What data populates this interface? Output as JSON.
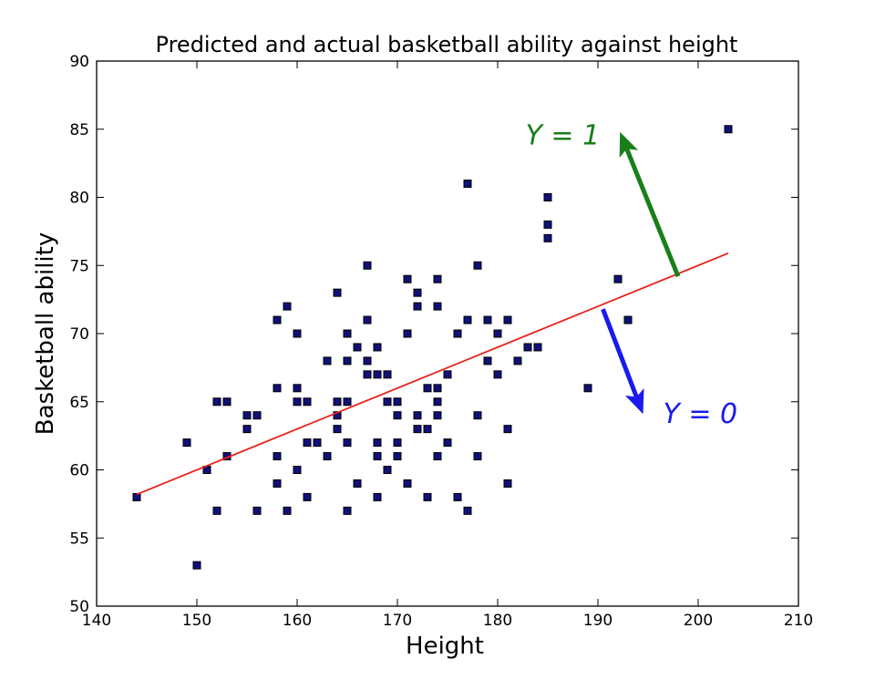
{
  "chart_data": {
    "type": "scatter",
    "title": "Predicted and actual basketball ability against height",
    "xlabel": "Height",
    "ylabel": "Basketball ability",
    "xlim": [
      140,
      210
    ],
    "ylim": [
      50,
      90
    ],
    "xticks": [
      "140",
      "150",
      "160",
      "170",
      "180",
      "190",
      "200",
      "210"
    ],
    "yticks": [
      "50",
      "55",
      "60",
      "65",
      "70",
      "75",
      "80",
      "85",
      "90"
    ],
    "grid": false,
    "series": [
      {
        "points": [
          [
            144,
            58
          ],
          [
            149,
            62
          ],
          [
            150,
            53
          ],
          [
            151,
            60
          ],
          [
            152,
            57
          ],
          [
            152,
            65
          ],
          [
            153,
            65
          ],
          [
            153,
            61
          ],
          [
            155,
            64
          ],
          [
            155,
            63
          ],
          [
            156,
            64
          ],
          [
            156,
            57
          ],
          [
            158,
            71
          ],
          [
            158,
            66
          ],
          [
            158,
            61
          ],
          [
            158,
            59
          ],
          [
            159,
            72
          ],
          [
            159,
            57
          ],
          [
            160,
            70
          ],
          [
            160,
            66
          ],
          [
            160,
            65
          ],
          [
            160,
            60
          ],
          [
            161,
            65
          ],
          [
            161,
            62
          ],
          [
            161,
            58
          ],
          [
            162,
            62
          ],
          [
            163,
            68
          ],
          [
            163,
            61
          ],
          [
            164,
            73
          ],
          [
            164,
            65
          ],
          [
            164,
            64
          ],
          [
            164,
            63
          ],
          [
            165,
            70
          ],
          [
            165,
            68
          ],
          [
            165,
            65
          ],
          [
            165,
            62
          ],
          [
            165,
            57
          ],
          [
            166,
            69
          ],
          [
            166,
            59
          ],
          [
            167,
            75
          ],
          [
            167,
            71
          ],
          [
            167,
            68
          ],
          [
            167,
            67
          ],
          [
            168,
            69
          ],
          [
            168,
            67
          ],
          [
            168,
            62
          ],
          [
            168,
            61
          ],
          [
            168,
            58
          ],
          [
            169,
            67
          ],
          [
            169,
            65
          ],
          [
            169,
            60
          ],
          [
            170,
            65
          ],
          [
            170,
            64
          ],
          [
            170,
            62
          ],
          [
            170,
            61
          ],
          [
            171,
            74
          ],
          [
            171,
            70
          ],
          [
            171,
            59
          ],
          [
            172,
            73
          ],
          [
            172,
            72
          ],
          [
            172,
            64
          ],
          [
            172,
            63
          ],
          [
            173,
            66
          ],
          [
            173,
            63
          ],
          [
            173,
            58
          ],
          [
            174,
            74
          ],
          [
            174,
            72
          ],
          [
            174,
            66
          ],
          [
            174,
            65
          ],
          [
            174,
            64
          ],
          [
            174,
            61
          ],
          [
            175,
            67
          ],
          [
            175,
            62
          ],
          [
            176,
            70
          ],
          [
            176,
            58
          ],
          [
            177,
            81
          ],
          [
            177,
            71
          ],
          [
            177,
            57
          ],
          [
            178,
            75
          ],
          [
            178,
            64
          ],
          [
            178,
            61
          ],
          [
            179,
            71
          ],
          [
            179,
            68
          ],
          [
            180,
            70
          ],
          [
            180,
            67
          ],
          [
            181,
            71
          ],
          [
            181,
            63
          ],
          [
            181,
            59
          ],
          [
            182,
            68
          ],
          [
            183,
            69
          ],
          [
            184,
            69
          ],
          [
            185,
            80
          ],
          [
            185,
            78
          ],
          [
            185,
            77
          ],
          [
            189,
            66
          ],
          [
            192,
            74
          ],
          [
            193,
            71
          ],
          [
            203,
            85
          ]
        ]
      },
      {
        "type": "line",
        "x": [
          144,
          203
        ],
        "y": [
          58.2,
          75.9
        ],
        "color": "#e8231c"
      }
    ],
    "annotations": [
      {
        "text": "Y = 1",
        "color": "#1a7f1a",
        "arrow_from": [
          198,
          74.2
        ],
        "arrow_to": [
          192.2,
          84.8
        ]
      },
      {
        "text": "Y = 0",
        "color": "#1a1aee",
        "arrow_from": [
          190.5,
          71.8
        ],
        "arrow_to": [
          194.5,
          64.1
        ]
      }
    ],
    "colors": {
      "point_fill": "#10107a",
      "point_edge": "#000000",
      "fit_line": "#e8231c",
      "y1_arrow": "#1a7f1a",
      "y0_arrow": "#1a1aee"
    }
  }
}
